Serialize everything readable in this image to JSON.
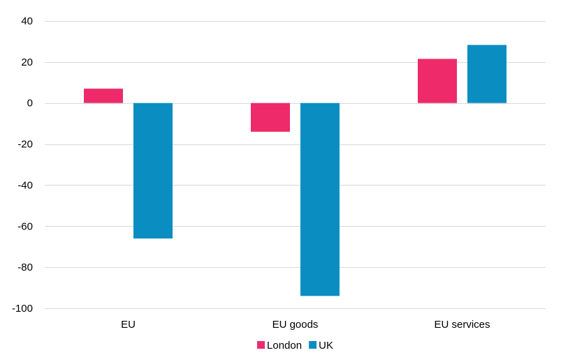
{
  "chart_data": {
    "type": "bar",
    "title": "",
    "xlabel": "",
    "ylabel": "",
    "categories": [
      "EU",
      "EU goods",
      "EU services"
    ],
    "series": [
      {
        "name": "London",
        "color": "#ee2a6b",
        "values": [
          7,
          -14,
          21.5
        ]
      },
      {
        "name": "UK",
        "color": "#0a8ec2",
        "values": [
          -66,
          -94,
          28.3
        ]
      }
    ],
    "ylim": [
      -100,
      40
    ],
    "yticks": [
      40,
      20,
      0,
      -20,
      -40,
      -60,
      -80,
      -100
    ],
    "grid": true,
    "legend_position": "bottom"
  }
}
